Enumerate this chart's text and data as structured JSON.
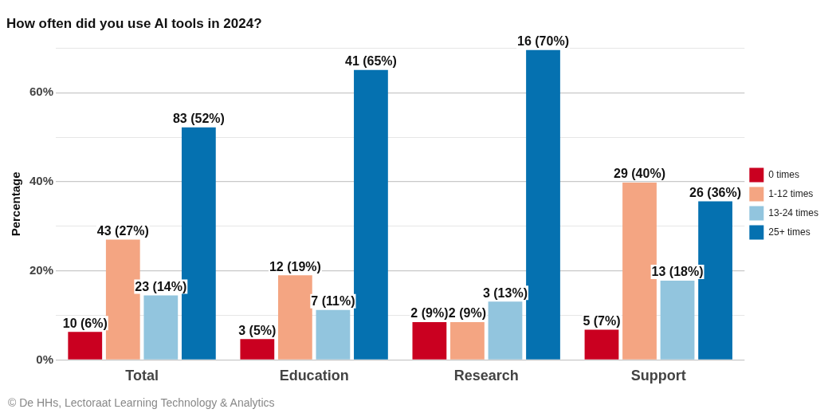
{
  "chart_data": {
    "type": "bar",
    "title": "How often did you use AI tools in 2024?",
    "ylabel": "Percentage",
    "categories": [
      "Total",
      "Education",
      "Research",
      "Support"
    ],
    "series": [
      {
        "name": "0 times",
        "color": "#ca0020",
        "values": [
          6.3,
          4.7,
          8.5,
          6.8
        ],
        "value_labels": [
          "10 (6%)",
          "3 (5%)",
          "2 (9%)",
          "5 (7%)"
        ]
      },
      {
        "name": "1-12 times",
        "color": "#f4a582",
        "values": [
          27.0,
          19.0,
          8.5,
          39.8
        ],
        "value_labels": [
          "43 (27%)",
          "12 (19%)",
          "2 (9%)",
          "29 (40%)"
        ]
      },
      {
        "name": "13-24 times",
        "color": "#92c5de",
        "values": [
          14.5,
          11.2,
          13.1,
          17.8
        ],
        "value_labels": [
          "23 (14%)",
          "7 (11%)",
          "3 (13%)",
          "13 (18%)"
        ]
      },
      {
        "name": "25+ times",
        "color": "#0571b0",
        "values": [
          52.2,
          65.1,
          69.6,
          35.6
        ],
        "value_labels": [
          "83 (52%)",
          "41 (65%)",
          "16 (70%)",
          "26 (36%)"
        ]
      }
    ],
    "ylim": [
      0,
      70
    ],
    "yticks": [
      {
        "value": 0,
        "label": "0%"
      },
      {
        "value": 10,
        "label": null
      },
      {
        "value": 20,
        "label": "20%"
      },
      {
        "value": 30,
        "label": null
      },
      {
        "value": 40,
        "label": "40%"
      },
      {
        "value": 50,
        "label": null
      },
      {
        "value": 60,
        "label": "60%"
      },
      {
        "value": 70,
        "label": null
      }
    ],
    "grid": "y",
    "legend": "right",
    "annotations": [
      "© De HHs, Lectoraat Learning Technology & Analytics"
    ]
  }
}
